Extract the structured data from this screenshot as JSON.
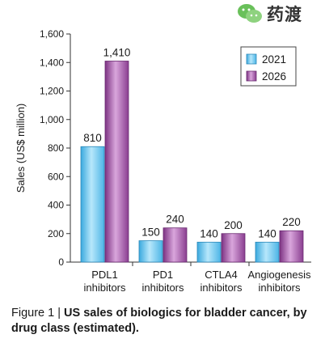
{
  "watermark": {
    "text": "药渡",
    "icon": "wechat-icon"
  },
  "caption": {
    "prefix": "Figure 1 | ",
    "text": "US sales of biologics for bladder cancer, by drug class (estimated)."
  },
  "chart_data": {
    "type": "bar",
    "ylabel": "Sales (US$ million)",
    "ylim": [
      0,
      1600
    ],
    "yticks": [
      0,
      200,
      400,
      600,
      800,
      1000,
      1200,
      1400,
      1600
    ],
    "ytick_labels": [
      "0",
      "200",
      "400",
      "600",
      "800",
      "1,000",
      "1,200",
      "1,400",
      "1,600"
    ],
    "categories": [
      [
        "PDL1",
        "inhibitors"
      ],
      [
        "PD1",
        "inhibitors"
      ],
      [
        "CTLA4",
        "inhibitors"
      ],
      [
        "Angiogenesis",
        "inhibitors"
      ]
    ],
    "series": [
      {
        "name": "2021",
        "values": [
          810,
          150,
          140,
          140
        ],
        "labels": [
          "810",
          "150",
          "140",
          "140"
        ],
        "color": "#6ecbf0"
      },
      {
        "name": "2026",
        "values": [
          1410,
          240,
          200,
          220
        ],
        "labels": [
          "1,410",
          "240",
          "200",
          "220"
        ],
        "color": "#9b4d9b"
      }
    ],
    "legend": "top-right",
    "grid": false
  }
}
